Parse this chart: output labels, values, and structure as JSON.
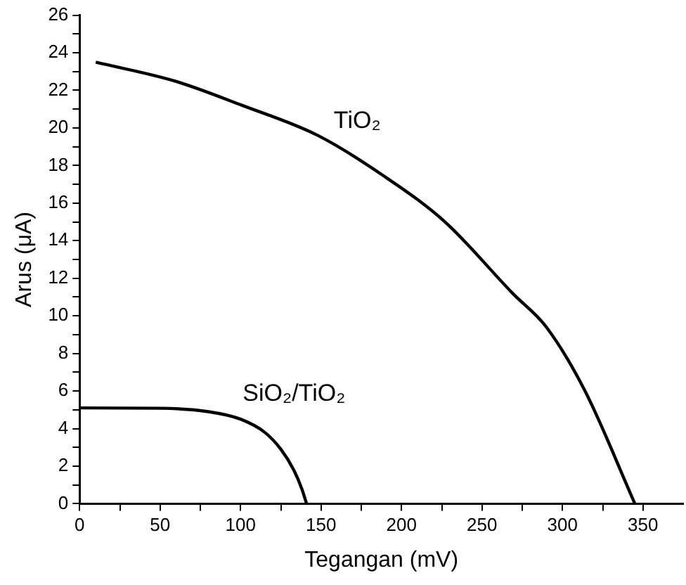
{
  "chart_data": {
    "type": "line",
    "xlabel": "Tegangan (mV)",
    "ylabel": "Arus (μA)",
    "xlim": [
      0,
      375
    ],
    "ylim": [
      0,
      26
    ],
    "xticks": [
      0,
      {
        "value": 25,
        "label": null
      },
      50,
      {
        "value": 75,
        "label": null
      },
      100,
      {
        "value": 125,
        "label": null
      },
      150,
      {
        "value": 175,
        "label": null
      },
      200,
      {
        "value": 225,
        "label": null
      },
      250,
      {
        "value": 275,
        "label": null
      },
      300,
      {
        "value": 325,
        "label": null
      },
      350
    ],
    "yticks": [
      0,
      {
        "value": 1,
        "label": null
      },
      2,
      {
        "value": 3,
        "label": null
      },
      4,
      {
        "value": 5,
        "label": null
      },
      6,
      {
        "value": 7,
        "label": null
      },
      8,
      {
        "value": 9,
        "label": null
      },
      10,
      {
        "value": 11,
        "label": null
      },
      12,
      {
        "value": 13,
        "label": null
      },
      14,
      {
        "value": 15,
        "label": null
      },
      16,
      {
        "value": 17,
        "label": null
      },
      18,
      {
        "value": 19,
        "label": null
      },
      20,
      {
        "value": 21,
        "label": null
      },
      22,
      {
        "value": 23,
        "label": null
      },
      24,
      {
        "value": 25,
        "label": null
      },
      26
    ],
    "series": [
      {
        "name": "TiO₂",
        "color": "#000000",
        "x": [
          10,
          59,
          101,
          148,
          188,
          227,
          269,
          290,
          314,
          345
        ],
        "values": [
          23.5,
          22.5,
          21.2,
          19.6,
          17.5,
          15.0,
          11.2,
          9.4,
          6.0,
          0
        ]
      },
      {
        "name": "SiO₂/TiO₂",
        "color": "#000000",
        "x": [
          0,
          50,
          80,
          100,
          115,
          125,
          133,
          138,
          141
        ],
        "values": [
          5.1,
          5.08,
          4.9,
          4.5,
          3.8,
          2.9,
          1.8,
          0.8,
          0
        ]
      }
    ],
    "grid": false,
    "legend": false,
    "marker": "none",
    "line_style": "solid"
  }
}
